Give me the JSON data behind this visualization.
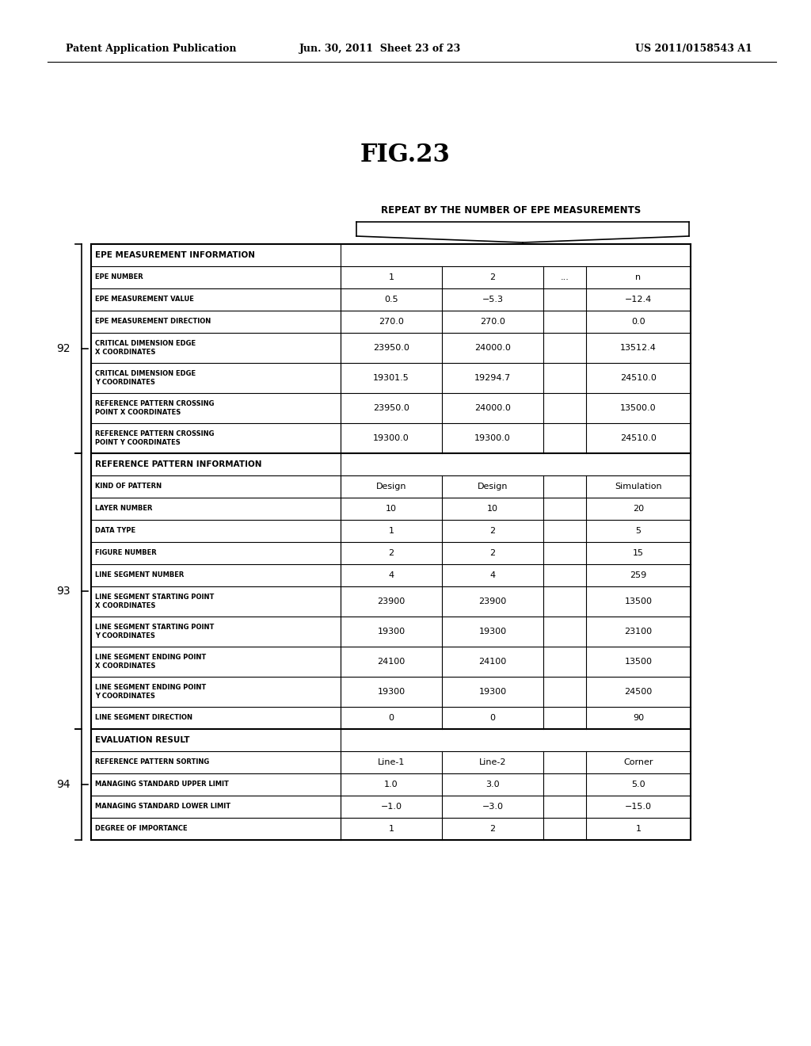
{
  "header_text_left": "Patent Application Publication",
  "header_text_mid": "Jun. 30, 2011  Sheet 23 of 23",
  "header_text_right": "US 2011/0158543 A1",
  "fig_title": "FIG.23",
  "repeat_label": "REPEAT BY THE NUMBER OF EPE MEASUREMENTS",
  "background_color": "#ffffff",
  "sections": [
    {
      "section_label": "EPE MEASUREMENT INFORMATION",
      "label_id": "92",
      "rows": [
        {
          "label": "EPE NUMBER",
          "col1": "1",
          "col2": "2",
          "col3": "...",
          "col4": "n"
        },
        {
          "label": "EPE MEASUREMENT VALUE",
          "col1": "0.5",
          "col2": "−5.3",
          "col3": "",
          "col4": "−12.4"
        },
        {
          "label": "EPE MEASUREMENT DIRECTION",
          "col1": "270.0",
          "col2": "270.0",
          "col3": "",
          "col4": "0.0"
        },
        {
          "label": "CRITICAL DIMENSION EDGE\nX COORDINATES",
          "col1": "23950.0",
          "col2": "24000.0",
          "col3": "",
          "col4": "13512.4"
        },
        {
          "label": "CRITICAL DIMENSION EDGE\nY COORDINATES",
          "col1": "19301.5",
          "col2": "19294.7",
          "col3": "",
          "col4": "24510.0"
        },
        {
          "label": "REFERENCE PATTERN CROSSING\nPOINT X COORDINATES",
          "col1": "23950.0",
          "col2": "24000.0",
          "col3": "",
          "col4": "13500.0"
        },
        {
          "label": "REFERENCE PATTERN CROSSING\nPOINT Y COORDINATES",
          "col1": "19300.0",
          "col2": "19300.0",
          "col3": "",
          "col4": "24510.0"
        }
      ]
    },
    {
      "section_label": "REFERENCE PATTERN INFORMATION",
      "label_id": "93",
      "rows": [
        {
          "label": "KIND OF PATTERN",
          "col1": "Design",
          "col2": "Design",
          "col3": "",
          "col4": "Simulation"
        },
        {
          "label": "LAYER NUMBER",
          "col1": "10",
          "col2": "10",
          "col3": "",
          "col4": "20"
        },
        {
          "label": "DATA TYPE",
          "col1": "1",
          "col2": "2",
          "col3": "",
          "col4": "5"
        },
        {
          "label": "FIGURE NUMBER",
          "col1": "2",
          "col2": "2",
          "col3": "",
          "col4": "15"
        },
        {
          "label": "LINE SEGMENT NUMBER",
          "col1": "4",
          "col2": "4",
          "col3": "",
          "col4": "259"
        },
        {
          "label": "LINE SEGMENT STARTING POINT\nX COORDINATES",
          "col1": "23900",
          "col2": "23900",
          "col3": "",
          "col4": "13500"
        },
        {
          "label": "LINE SEGMENT STARTING POINT\nY COORDINATES",
          "col1": "19300",
          "col2": "19300",
          "col3": "",
          "col4": "23100"
        },
        {
          "label": "LINE SEGMENT ENDING POINT\nX COORDINATES",
          "col1": "24100",
          "col2": "24100",
          "col3": "",
          "col4": "13500"
        },
        {
          "label": "LINE SEGMENT ENDING POINT\nY COORDINATES",
          "col1": "19300",
          "col2": "19300",
          "col3": "",
          "col4": "24500"
        },
        {
          "label": "LINE SEGMENT DIRECTION",
          "col1": "0",
          "col2": "0",
          "col3": "",
          "col4": "90"
        }
      ]
    },
    {
      "section_label": "EVALUATION RESULT",
      "label_id": "94",
      "rows": [
        {
          "label": "REFERENCE PATTERN SORTING",
          "col1": "Line-1",
          "col2": "Line-2",
          "col3": "",
          "col4": "Corner"
        },
        {
          "label": "MANAGING STANDARD UPPER LIMIT",
          "col1": "1.0",
          "col2": "3.0",
          "col3": "",
          "col4": "5.0"
        },
        {
          "label": "MANAGING STANDARD LOWER LIMIT",
          "col1": "−1.0",
          "col2": "−3.0",
          "col3": "",
          "col4": "−15.0"
        },
        {
          "label": "DEGREE OF IMPORTANCE",
          "col1": "1",
          "col2": "2",
          "col3": "",
          "col4": "1"
        }
      ]
    }
  ]
}
